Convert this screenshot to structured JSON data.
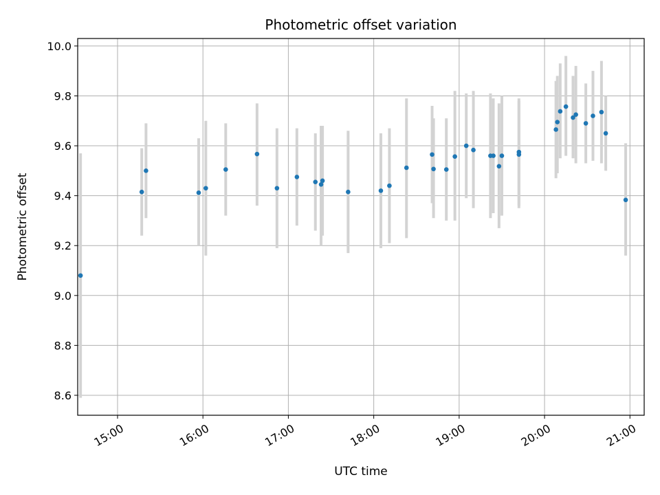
{
  "chart_data": {
    "type": "scatter",
    "title": "Photometric offset variation",
    "xlabel": "UTC time",
    "ylabel": "Photometric offset",
    "x_axis_type": "time",
    "xlim": [
      "14:32",
      "21:10"
    ],
    "ylim": [
      8.52,
      10.03
    ],
    "x_ticks": [
      "15:00",
      "16:00",
      "17:00",
      "18:00",
      "19:00",
      "20:00",
      "21:00"
    ],
    "y_ticks": [
      8.6,
      8.8,
      9.0,
      9.2,
      9.4,
      9.6,
      9.8,
      10.0
    ],
    "y_tick_labels": [
      "8.6",
      "8.8",
      "9.0",
      "9.2",
      "9.4",
      "9.6",
      "9.8",
      "10.0"
    ],
    "grid": true,
    "legend": "none",
    "marker_color": "#1f77b4",
    "errorbar_color": "#d3d3d3",
    "series": [
      {
        "points": [
          {
            "t": "14:34",
            "y": 9.08,
            "lo": 8.59,
            "hi": 9.57
          },
          {
            "t": "15:17",
            "y": 9.415,
            "lo": 9.24,
            "hi": 9.59
          },
          {
            "t": "15:20",
            "y": 9.5,
            "lo": 9.31,
            "hi": 9.69
          },
          {
            "t": "15:57",
            "y": 9.412,
            "lo": 9.2,
            "hi": 9.63
          },
          {
            "t": "16:02",
            "y": 9.43,
            "lo": 9.16,
            "hi": 9.7
          },
          {
            "t": "16:16",
            "y": 9.505,
            "lo": 9.32,
            "hi": 9.69
          },
          {
            "t": "16:38",
            "y": 9.567,
            "lo": 9.36,
            "hi": 9.77
          },
          {
            "t": "16:52",
            "y": 9.43,
            "lo": 9.19,
            "hi": 9.67
          },
          {
            "t": "17:06",
            "y": 9.475,
            "lo": 9.28,
            "hi": 9.67
          },
          {
            "t": "17:19",
            "y": 9.455,
            "lo": 9.26,
            "hi": 9.65
          },
          {
            "t": "17:23",
            "y": 9.445,
            "lo": 9.2,
            "hi": 9.68
          },
          {
            "t": "17:24",
            "y": 9.46,
            "lo": 9.24,
            "hi": 9.68
          },
          {
            "t": "17:42",
            "y": 9.415,
            "lo": 9.17,
            "hi": 9.66
          },
          {
            "t": "18:05",
            "y": 9.42,
            "lo": 9.19,
            "hi": 9.65
          },
          {
            "t": "18:11",
            "y": 9.44,
            "lo": 9.21,
            "hi": 9.67
          },
          {
            "t": "18:23",
            "y": 9.512,
            "lo": 9.23,
            "hi": 9.79
          },
          {
            "t": "18:41",
            "y": 9.565,
            "lo": 9.37,
            "hi": 9.76
          },
          {
            "t": "18:42",
            "y": 9.507,
            "lo": 9.31,
            "hi": 9.71
          },
          {
            "t": "18:51",
            "y": 9.505,
            "lo": 9.3,
            "hi": 9.71
          },
          {
            "t": "18:57",
            "y": 9.557,
            "lo": 9.3,
            "hi": 9.82
          },
          {
            "t": "19:05",
            "y": 9.6,
            "lo": 9.39,
            "hi": 9.81
          },
          {
            "t": "19:10",
            "y": 9.583,
            "lo": 9.35,
            "hi": 9.82
          },
          {
            "t": "19:22",
            "y": 9.56,
            "lo": 9.31,
            "hi": 9.81
          },
          {
            "t": "19:24",
            "y": 9.56,
            "lo": 9.33,
            "hi": 9.79
          },
          {
            "t": "19:28",
            "y": 9.518,
            "lo": 9.27,
            "hi": 9.77
          },
          {
            "t": "19:30",
            "y": 9.56,
            "lo": 9.32,
            "hi": 9.8
          },
          {
            "t": "19:42",
            "y": 9.575,
            "lo": 9.36,
            "hi": 9.79
          },
          {
            "t": "19:42",
            "y": 9.565,
            "lo": 9.35,
            "hi": 9.78
          },
          {
            "t": "20:08",
            "y": 9.665,
            "lo": 9.47,
            "hi": 9.86
          },
          {
            "t": "20:09",
            "y": 9.695,
            "lo": 9.49,
            "hi": 9.88
          },
          {
            "t": "20:11",
            "y": 9.738,
            "lo": 9.55,
            "hi": 9.93
          },
          {
            "t": "20:15",
            "y": 9.757,
            "lo": 9.56,
            "hi": 9.96
          },
          {
            "t": "20:20",
            "y": 9.713,
            "lo": 9.55,
            "hi": 9.88
          },
          {
            "t": "20:22",
            "y": 9.725,
            "lo": 9.53,
            "hi": 9.92
          },
          {
            "t": "20:29",
            "y": 9.69,
            "lo": 9.53,
            "hi": 9.85
          },
          {
            "t": "20:34",
            "y": 9.72,
            "lo": 9.54,
            "hi": 9.9
          },
          {
            "t": "20:40",
            "y": 9.735,
            "lo": 9.53,
            "hi": 9.94
          },
          {
            "t": "20:43",
            "y": 9.65,
            "lo": 9.5,
            "hi": 9.8
          },
          {
            "t": "20:57",
            "y": 9.383,
            "lo": 9.16,
            "hi": 9.61
          }
        ]
      }
    ]
  }
}
